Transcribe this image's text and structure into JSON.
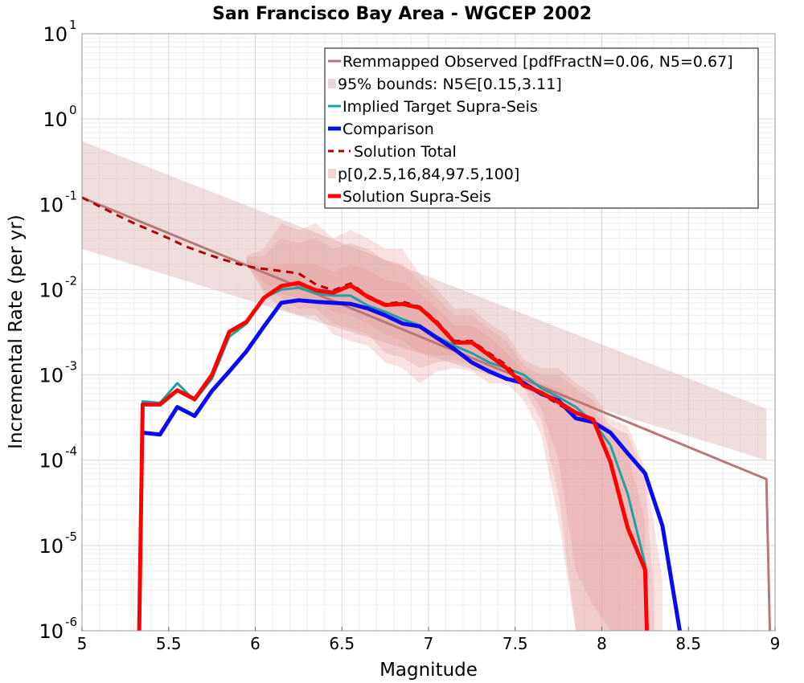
{
  "chart_data": {
    "type": "line",
    "title": "San Francisco Bay Area - WGCEP 2002",
    "xlabel": "Magnitude",
    "ylabel": "Incremental Rate (per yr)",
    "xlim": [
      5,
      9
    ],
    "ylim": [
      1e-06,
      10
    ],
    "yscale": "log",
    "grid": true,
    "legend_position": "top-right",
    "x_ticks": [
      "5",
      "5.5",
      "6",
      "6.5",
      "7",
      "7.5",
      "8",
      "8.5",
      "9"
    ],
    "y_ticks": [
      {
        "base": "10",
        "exp": "-6",
        "value": 1e-06
      },
      {
        "base": "10",
        "exp": "-5",
        "value": 1e-05
      },
      {
        "base": "10",
        "exp": "-4",
        "value": 0.0001
      },
      {
        "base": "10",
        "exp": "-3",
        "value": 0.001
      },
      {
        "base": "10",
        "exp": "-2",
        "value": 0.01
      },
      {
        "base": "10",
        "exp": "-1",
        "value": 0.1
      },
      {
        "base": "10",
        "exp": "0",
        "value": 1
      },
      {
        "base": "10",
        "exp": "1",
        "value": 10
      }
    ],
    "bands": [
      {
        "name": "95% bounds: N5∈[0.15,3.11]",
        "color": "#dcb4b4",
        "opacity": 0.45,
        "x": [
          5.0,
          8.95
        ],
        "lower": [
          0.03,
          0.0001
        ],
        "upper": [
          0.55,
          0.0004
        ],
        "end_x": 8.95
      },
      {
        "name": "p[0,2.5,16,84,97.5,100] (outer)",
        "color": "#e59a9a",
        "opacity": 0.3,
        "x": [
          5.95,
          6.05,
          6.15,
          6.25,
          6.35,
          6.45,
          6.55,
          6.65,
          6.75,
          6.85,
          6.95,
          7.05,
          7.15,
          7.25,
          7.35,
          7.45,
          7.55,
          7.65,
          7.75,
          7.85,
          7.95,
          8.05,
          8.15,
          8.25,
          8.35
        ],
        "lower": [
          0.02,
          0.009,
          0.006,
          0.005,
          0.005,
          0.003,
          0.0025,
          0.0022,
          0.0014,
          0.0012,
          0.0008,
          0.0011,
          0.0012,
          0.0011,
          0.0008,
          0.0008,
          0.0005,
          0.0002,
          2e-05,
          1e-06,
          1e-06,
          1e-06,
          1e-06,
          1e-06,
          1e-06
        ],
        "upper": [
          0.025,
          0.03,
          0.06,
          0.05,
          0.06,
          0.04,
          0.05,
          0.04,
          0.03,
          0.03,
          0.015,
          0.01,
          0.006,
          0.006,
          0.004,
          0.003,
          0.0015,
          0.0012,
          0.0012,
          0.0008,
          0.0006,
          0.0003,
          0.00025,
          8e-05,
          4e-06
        ]
      },
      {
        "name": "p[0,2.5,16,84,97.5,100] (middle)",
        "color": "#e59a9a",
        "opacity": 0.3,
        "x": [
          5.95,
          6.05,
          6.15,
          6.25,
          6.35,
          6.45,
          6.55,
          6.65,
          6.75,
          6.85,
          6.95,
          7.05,
          7.15,
          7.25,
          7.35,
          7.45,
          7.55,
          7.65,
          7.75,
          7.85,
          7.95,
          8.05,
          8.15,
          8.25,
          8.3
        ],
        "lower": [
          0.02,
          0.01,
          0.008,
          0.006,
          0.006,
          0.004,
          0.0035,
          0.003,
          0.0018,
          0.0016,
          0.0012,
          0.0014,
          0.0015,
          0.0013,
          0.001,
          0.001,
          0.0007,
          0.0003,
          4e-05,
          1e-06,
          1e-06,
          1e-06,
          1e-06,
          1e-06,
          1e-06
        ],
        "upper": [
          0.024,
          0.025,
          0.04,
          0.035,
          0.04,
          0.03,
          0.035,
          0.03,
          0.022,
          0.02,
          0.012,
          0.008,
          0.005,
          0.005,
          0.0035,
          0.0025,
          0.0013,
          0.001,
          0.001,
          0.0007,
          0.0005,
          0.00025,
          0.0002,
          6e-05,
          3e-06
        ]
      },
      {
        "name": "p[0,2.5,16,84,97.5,100] (inner)",
        "color": "#e59a9a",
        "opacity": 0.35,
        "x": [
          5.95,
          6.05,
          6.15,
          6.25,
          6.35,
          6.45,
          6.55,
          6.65,
          6.75,
          6.85,
          6.95,
          7.05,
          7.15,
          7.25,
          7.35,
          7.45,
          7.55,
          7.65,
          7.75,
          7.85,
          7.95,
          8.05,
          8.15,
          8.25
        ],
        "lower": [
          0.021,
          0.012,
          0.009,
          0.008,
          0.0075,
          0.0055,
          0.005,
          0.004,
          0.003,
          0.0025,
          0.0018,
          0.0017,
          0.0017,
          0.0015,
          0.0011,
          0.0011,
          0.0008,
          0.0004,
          0.0001,
          5e-06,
          2e-06,
          1e-06,
          1e-06,
          1e-06
        ],
        "upper": [
          0.022,
          0.018,
          0.02,
          0.02,
          0.02,
          0.016,
          0.02,
          0.017,
          0.013,
          0.012,
          0.009,
          0.006,
          0.0038,
          0.0038,
          0.0028,
          0.0018,
          0.0011,
          0.0008,
          0.0007,
          0.0005,
          0.0004,
          0.0002,
          0.00012,
          2e-05
        ]
      }
    ],
    "series": [
      {
        "name": "Remmapped Observed [pdfFractN=0.06, N5=0.67]",
        "color": "#b87878",
        "width": 3,
        "dash": "",
        "x": [
          5.0,
          8.95,
          8.97
        ],
        "y": [
          0.12,
          6e-05,
          1e-06
        ]
      },
      {
        "name": "Implied Target Supra-Seis",
        "color": "#20a0a0",
        "width": 3,
        "dash": "",
        "x": [
          5.33,
          5.35,
          5.45,
          5.55,
          5.65,
          5.75,
          5.85,
          5.95,
          6.05,
          6.15,
          6.25,
          6.35,
          6.45,
          6.55,
          6.65,
          6.75,
          6.85,
          6.95,
          7.05,
          7.15,
          7.25,
          7.35,
          7.45,
          7.55,
          7.65,
          7.75,
          7.85,
          7.95,
          8.05,
          8.15,
          8.25,
          8.26
        ],
        "y": [
          1e-06,
          0.00049,
          0.00047,
          0.0008,
          0.0005,
          0.0009,
          0.0028,
          0.004,
          0.008,
          0.01,
          0.0105,
          0.009,
          0.0085,
          0.0085,
          0.0065,
          0.0055,
          0.0045,
          0.0038,
          0.0028,
          0.0022,
          0.0018,
          0.0014,
          0.0012,
          0.001,
          0.0007,
          0.00055,
          0.00042,
          0.00028,
          0.00015,
          4e-05,
          6e-06,
          1e-06
        ]
      },
      {
        "name": "Comparison",
        "color": "#0a0aee",
        "width": 5,
        "dash": "",
        "x": [
          5.35,
          5.45,
          5.55,
          5.65,
          5.75,
          5.85,
          5.95,
          6.05,
          6.15,
          6.25,
          6.35,
          6.45,
          6.55,
          6.65,
          6.75,
          6.85,
          6.95,
          7.05,
          7.15,
          7.25,
          7.35,
          7.45,
          7.55,
          7.65,
          7.75,
          7.85,
          7.95,
          8.05,
          8.15,
          8.25,
          8.35,
          8.45
        ],
        "y": [
          0.00021,
          0.0002,
          0.00042,
          0.00033,
          0.00065,
          0.0011,
          0.0019,
          0.0037,
          0.007,
          0.0075,
          0.0072,
          0.007,
          0.0068,
          0.006,
          0.005,
          0.004,
          0.0037,
          0.0027,
          0.002,
          0.0014,
          0.0011,
          0.0009,
          0.0008,
          0.0006,
          0.0005,
          0.00031,
          0.00028,
          0.00021,
          0.00012,
          7e-05,
          1.7e-05,
          1e-06
        ]
      },
      {
        "name": "Solution Total",
        "color": "#b00000",
        "width": 3,
        "dash": "9,7",
        "x": [
          5.0,
          5.1,
          5.2,
          5.3,
          5.4,
          5.5,
          5.6,
          5.7,
          5.8,
          5.9,
          6.0,
          6.1,
          6.2,
          6.25,
          6.35,
          6.45,
          6.55,
          6.65,
          6.75,
          6.85,
          6.95,
          7.05,
          7.15,
          7.25,
          7.35,
          7.45,
          7.55,
          7.65,
          7.75,
          7.85,
          7.95
        ],
        "y": [
          0.12,
          0.095,
          0.075,
          0.06,
          0.049,
          0.04,
          0.032,
          0.027,
          0.023,
          0.02,
          0.018,
          0.017,
          0.016,
          0.0155,
          0.0115,
          0.0098,
          0.0118,
          0.0085,
          0.0068,
          0.0072,
          0.0063,
          0.0042,
          0.0025,
          0.0025,
          0.0018,
          0.0013,
          0.0008,
          0.0006,
          0.00045,
          0.00035,
          0.0003
        ]
      },
      {
        "name": "Solution Supra-Seis",
        "color": "#ff0000",
        "width": 5,
        "dash": "",
        "x": [
          5.33,
          5.35,
          5.45,
          5.55,
          5.65,
          5.75,
          5.85,
          5.95,
          6.05,
          6.15,
          6.25,
          6.35,
          6.45,
          6.55,
          6.65,
          6.75,
          6.85,
          6.95,
          7.05,
          7.15,
          7.25,
          7.35,
          7.45,
          7.55,
          7.65,
          7.75,
          7.85,
          7.95,
          8.05,
          8.15,
          8.25,
          8.26
        ],
        "y": [
          1e-06,
          0.00045,
          0.00045,
          0.00066,
          0.00052,
          0.001,
          0.0032,
          0.0042,
          0.008,
          0.011,
          0.012,
          0.0098,
          0.0092,
          0.0112,
          0.0082,
          0.0066,
          0.0068,
          0.0061,
          0.004,
          0.0024,
          0.0024,
          0.0017,
          0.0012,
          0.00075,
          0.00062,
          0.00048,
          0.00036,
          0.0003,
          9.5e-05,
          1.6e-05,
          5.2e-06,
          1e-06
        ]
      }
    ],
    "legend": [
      {
        "label": "Remmapped Observed [pdfFractN=0.06, N5=0.67]",
        "kind": "line",
        "color": "#b87878",
        "width": 3,
        "dash": ""
      },
      {
        "label": "95% bounds: N5∈[0.15,3.11]",
        "kind": "patch",
        "color": "#edd6d6"
      },
      {
        "label": "Implied Target Supra-Seis",
        "kind": "line",
        "color": "#20a0a0",
        "width": 3,
        "dash": ""
      },
      {
        "label": "Comparison",
        "kind": "line",
        "color": "#0a0aee",
        "width": 5,
        "dash": ""
      },
      {
        "label": "Solution Total",
        "kind": "line",
        "color": "#b00000",
        "width": 3,
        "dash": "9,7"
      },
      {
        "label": "p[0,2.5,16,84,97.5,100]",
        "kind": "patch",
        "color": "#f3d2d2"
      },
      {
        "label": "Solution Supra-Seis",
        "kind": "line",
        "color": "#ff0000",
        "width": 5,
        "dash": ""
      }
    ]
  }
}
